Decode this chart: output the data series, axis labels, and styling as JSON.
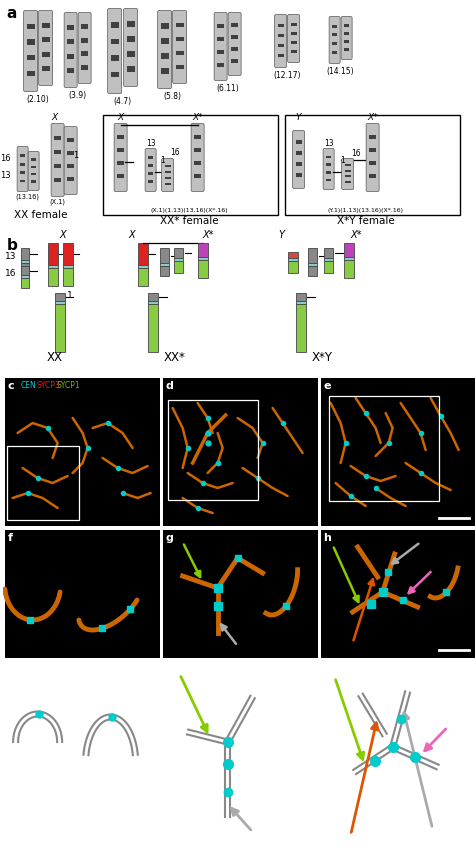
{
  "panel_a_label": "a",
  "panel_b_label": "b",
  "panel_c_label": "c",
  "panel_d_label": "d",
  "panel_e_label": "e",
  "panel_f_label": "f",
  "panel_g_label": "g",
  "panel_h_label": "h",
  "karyotype_pairs": [
    "(2.10)",
    "(3.9)",
    "(4.7)",
    "(5.8)",
    "(6.11)",
    "(12.17)",
    "(14.15)"
  ],
  "xx_female_label": "XX female",
  "xxstar_female_label": "XX* female",
  "xstary_female_label": "X*Y female",
  "xx_label": "XX",
  "xxstar_label": "XX*",
  "xstary_label": "X*Y",
  "cen_label": "CEN",
  "sycp3_label": "SYCP3",
  "sycp1_label": "SYCP1",
  "bg_white": "#ffffff",
  "red_color": "#dd2222",
  "green_color": "#66bb00",
  "purple_color": "#bb44bb",
  "orange_chrom": "#cc6600",
  "cyan_color": "#00cccc",
  "arrow_green": "#88cc00",
  "arrow_pink": "#ee66bb",
  "arrow_gray": "#aaaaaa",
  "arrow_orange": "#dd5500",
  "chrom_gray": "#888888",
  "chrom_light": "#b8b8b8",
  "chrom_edge": "#555555",
  "green_lower": "#88cc44",
  "cyan_centro": "#88cccc"
}
